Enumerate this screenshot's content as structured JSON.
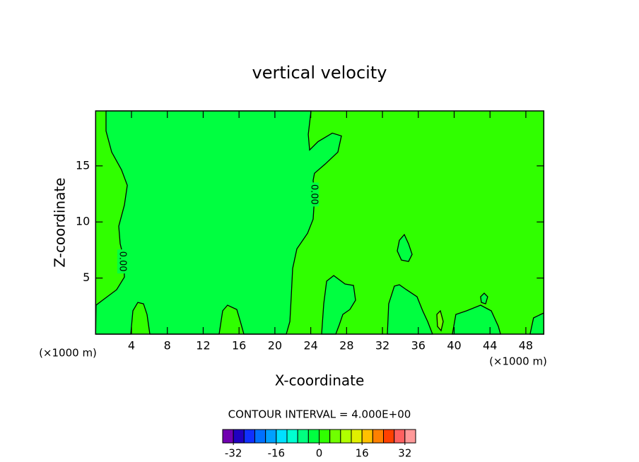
{
  "chart_data": {
    "type": "contour",
    "title": "vertical velocity",
    "x_label": "X-coordinate",
    "y_label": "Z-coordinate",
    "x_units": "(×1000 m)",
    "annotation": "CONTOUR INTERVAL = 4.000E+00",
    "xlim": [
      0,
      50
    ],
    "ylim": [
      0,
      19.9
    ],
    "xticks": [
      4,
      8,
      12,
      16,
      20,
      24,
      28,
      32,
      36,
      40,
      44,
      48
    ],
    "yticks": [
      5,
      10,
      15
    ],
    "background_bin": 9,
    "regions": [
      {
        "bin": 8,
        "x": [
          1.16,
          1.16,
          1.79,
          2.89,
          3.53,
          3.21,
          2.58,
          2.74,
          3.13,
          3.21,
          2.34,
          0.77,
          0.05,
          0,
          3.92,
          4.16,
          4.71,
          5.34,
          5.73,
          6.05,
          13.78,
          14.17,
          14.72,
          15.75,
          16.14,
          16.54,
          21.27,
          21.67,
          21.82,
          21.98,
          22.45,
          23.64,
          24.27,
          24.42,
          24.27,
          24.42,
          25.61,
          27.03,
          27.42,
          26.4,
          24.82,
          23.87,
          23.72,
          24.03
        ],
        "y": [
          19.9,
          18.11,
          16.23,
          14.65,
          13.27,
          11.51,
          9.62,
          8.05,
          6.79,
          5.09,
          3.96,
          3.02,
          2.58,
          0,
          0,
          2.08,
          2.83,
          2.7,
          1.76,
          0,
          0,
          2.08,
          2.58,
          2.2,
          1.13,
          0,
          0,
          1.13,
          3.33,
          5.85,
          7.61,
          8.99,
          10.25,
          12.14,
          13.71,
          14.34,
          15.16,
          16.23,
          17.67,
          17.92,
          17.17,
          16.42,
          17.8,
          19.9
        ]
      },
      {
        "bin": 8,
        "x": [
          33.89,
          34.44,
          34.91,
          35.31,
          34.91,
          34.12,
          33.65
        ],
        "y": [
          8.36,
          8.87,
          8.05,
          7.11,
          6.48,
          6.6,
          7.42
        ]
      },
      {
        "bin": 8,
        "x": [
          25.21,
          25.45,
          25.77,
          26.56,
          27.82,
          28.77,
          29.0,
          28.37,
          27.58,
          27.18,
          26.79
        ],
        "y": [
          0,
          2.7,
          4.72,
          5.22,
          4.47,
          4.34,
          3.02,
          2.2,
          1.76,
          0.82,
          0
        ]
      },
      {
        "bin": 8,
        "x": [
          32.55,
          32.7,
          33.33,
          33.89,
          34.68,
          35.86,
          36.49,
          37.04,
          37.59
        ],
        "y": [
          0,
          2.7,
          4.28,
          4.4,
          3.96,
          3.33,
          2.08,
          1.13,
          0
        ]
      },
      {
        "bin": 8,
        "x": [
          39.8,
          40.19,
          41.38,
          42.95,
          44.14,
          44.93,
          45.17
        ],
        "y": [
          0,
          1.76,
          2.08,
          2.58,
          2.08,
          0.69,
          0
        ]
      },
      {
        "bin": 8,
        "x": [
          42.95,
          43.35,
          43.74,
          43.51,
          43.04
        ],
        "y": [
          3.33,
          3.65,
          3.33,
          2.7,
          2.83
        ]
      },
      {
        "bin": 8,
        "x": [
          48.47,
          48.86,
          50,
          50
        ],
        "y": [
          0,
          1.45,
          1.89,
          0
        ]
      },
      {
        "bin": 10,
        "x": [
          38.07,
          38.46,
          38.78,
          38.54,
          38.14
        ],
        "y": [
          1.76,
          2.08,
          1.13,
          0.31,
          0.69
        ]
      }
    ],
    "contour_labels": [
      {
        "text": "0.00",
        "x": 2.97,
        "y": 6.48
      },
      {
        "text": "0.00",
        "x": 24.35,
        "y": 12.45
      }
    ],
    "colorbar": {
      "bounds": [
        -36,
        -32,
        -28,
        -24,
        -20,
        -16,
        -12,
        -8,
        -4,
        0,
        4,
        8,
        12,
        16,
        20,
        24,
        28,
        32,
        36
      ],
      "colors": [
        "#7000b0",
        "#2000c0",
        "#1030ff",
        "#0070ff",
        "#00a0ff",
        "#00e0ff",
        "#00ffd0",
        "#00ff80",
        "#00ff40",
        "#30ff00",
        "#70ff00",
        "#b0ff00",
        "#e0f000",
        "#ffc000",
        "#ff8000",
        "#ff4000",
        "#ff6060",
        "#ff9999"
      ],
      "ticks": [
        -32,
        -16,
        0,
        16,
        32
      ]
    }
  }
}
